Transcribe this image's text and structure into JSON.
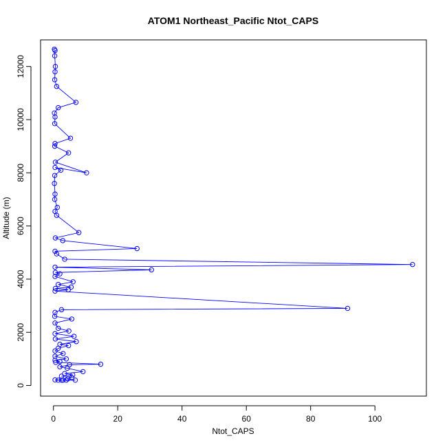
{
  "chart_data": {
    "type": "scatter",
    "title": "ATOM1 Northeast_Pacific Ntot_CAPS",
    "xlabel": "Ntot_CAPS",
    "ylabel": "Altitude (m)",
    "xlim": [
      -4,
      116
    ],
    "ylim": [
      -400,
      13000
    ],
    "xticks": [
      0,
      20,
      40,
      60,
      80,
      100
    ],
    "yticks": [
      0,
      2000,
      4000,
      6000,
      8000,
      10000,
      12000
    ],
    "grid": false,
    "legend": "none",
    "color": "#0000ff",
    "series": [
      {
        "points": [
          {
            "x": 0.3,
            "y": 12650
          },
          {
            "x": 0.5,
            "y": 12600
          },
          {
            "x": 0.4,
            "y": 12400
          },
          {
            "x": 0.6,
            "y": 12000
          },
          {
            "x": 0.5,
            "y": 11800
          },
          {
            "x": 0.4,
            "y": 11500
          },
          {
            "x": 1.0,
            "y": 11250
          },
          {
            "x": 7.0,
            "y": 10650
          },
          {
            "x": 1.5,
            "y": 10450
          },
          {
            "x": 0.3,
            "y": 10250
          },
          {
            "x": 0.5,
            "y": 10100
          },
          {
            "x": 0.4,
            "y": 9850
          },
          {
            "x": 5.3,
            "y": 9300
          },
          {
            "x": 0.5,
            "y": 9100
          },
          {
            "x": 0.4,
            "y": 9000
          },
          {
            "x": 4.7,
            "y": 8750
          },
          {
            "x": 0.6,
            "y": 8400
          },
          {
            "x": 10.3,
            "y": 8000
          },
          {
            "x": 0.5,
            "y": 8200
          },
          {
            "x": 2.3,
            "y": 8100
          },
          {
            "x": 0.4,
            "y": 7900
          },
          {
            "x": 0.3,
            "y": 7600
          },
          {
            "x": 0.5,
            "y": 7200
          },
          {
            "x": 0.4,
            "y": 7000
          },
          {
            "x": 1.2,
            "y": 6700
          },
          {
            "x": 0.5,
            "y": 6550
          },
          {
            "x": 1.0,
            "y": 6400
          },
          {
            "x": 7.9,
            "y": 5750
          },
          {
            "x": 0.6,
            "y": 5550
          },
          {
            "x": 2.9,
            "y": 5450
          },
          {
            "x": 26.0,
            "y": 5150
          },
          {
            "x": 0.5,
            "y": 5050
          },
          {
            "x": 1.0,
            "y": 4950
          },
          {
            "x": 3.5,
            "y": 4750
          },
          {
            "x": 111.7,
            "y": 4550
          },
          {
            "x": 0.5,
            "y": 4450
          },
          {
            "x": 30.5,
            "y": 4350
          },
          {
            "x": 0.6,
            "y": 4250
          },
          {
            "x": 2.0,
            "y": 4200
          },
          {
            "x": 0.5,
            "y": 4100
          },
          {
            "x": 6.1,
            "y": 3900
          },
          {
            "x": 1.5,
            "y": 3800
          },
          {
            "x": 5.5,
            "y": 3700
          },
          {
            "x": 0.6,
            "y": 3650
          },
          {
            "x": 4.6,
            "y": 3600
          },
          {
            "x": 0.5,
            "y": 3550
          },
          {
            "x": 91.5,
            "y": 2900
          },
          {
            "x": 2.5,
            "y": 2850
          },
          {
            "x": 0.5,
            "y": 2750
          },
          {
            "x": 0.4,
            "y": 2600
          },
          {
            "x": 5.7,
            "y": 2500
          },
          {
            "x": 0.5,
            "y": 2350
          },
          {
            "x": 1.5,
            "y": 2150
          },
          {
            "x": 4.8,
            "y": 2050
          },
          {
            "x": 0.5,
            "y": 1950
          },
          {
            "x": 6.4,
            "y": 1850
          },
          {
            "x": 0.6,
            "y": 1750
          },
          {
            "x": 7.1,
            "y": 1650
          },
          {
            "x": 2.0,
            "y": 1550
          },
          {
            "x": 4.7,
            "y": 1500
          },
          {
            "x": 1.5,
            "y": 1400
          },
          {
            "x": 0.5,
            "y": 1300
          },
          {
            "x": 3.0,
            "y": 1200
          },
          {
            "x": 0.5,
            "y": 1100
          },
          {
            "x": 4.0,
            "y": 1000
          },
          {
            "x": 0.5,
            "y": 950
          },
          {
            "x": 2.0,
            "y": 900
          },
          {
            "x": 0.7,
            "y": 870
          },
          {
            "x": 14.7,
            "y": 800
          },
          {
            "x": 5.0,
            "y": 780
          },
          {
            "x": 2.0,
            "y": 700
          },
          {
            "x": 4.3,
            "y": 650
          },
          {
            "x": 9.2,
            "y": 520
          },
          {
            "x": 3.5,
            "y": 450
          },
          {
            "x": 6.0,
            "y": 400
          },
          {
            "x": 2.5,
            "y": 350
          },
          {
            "x": 5.7,
            "y": 300
          },
          {
            "x": 4.5,
            "y": 250
          },
          {
            "x": 6.8,
            "y": 200
          },
          {
            "x": 3.0,
            "y": 200
          },
          {
            "x": 0.5,
            "y": 210
          },
          {
            "x": 1.5,
            "y": 200
          },
          {
            "x": 2.5,
            "y": 200
          },
          {
            "x": 4.0,
            "y": 200
          }
        ]
      }
    ]
  }
}
